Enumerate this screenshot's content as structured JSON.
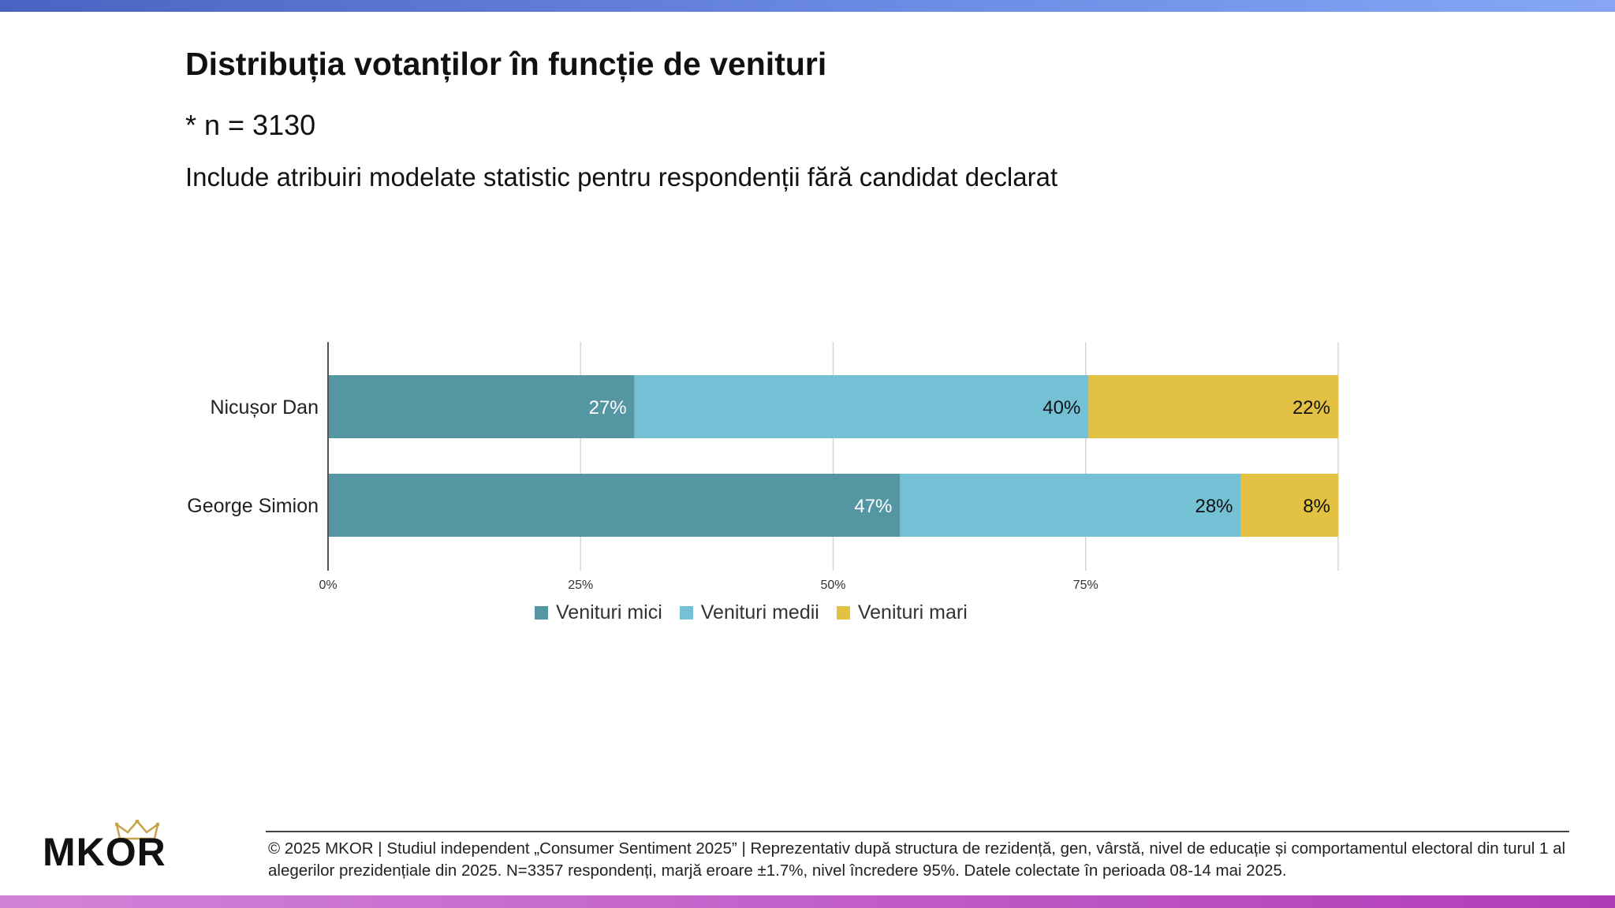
{
  "title": "Distribuția votanților în funcție de venituri",
  "sample_note": "* n = 3130",
  "subtitle": "Include atribuiri modelate statistic pentru respondenții fără candidat declarat",
  "colors": {
    "low": "#5596a3",
    "mid": "#74c0d5",
    "high": "#e3c143",
    "top_bar": "#5f7ad6",
    "bottom_bar": "#c05cc8"
  },
  "chart_data": {
    "type": "bar",
    "orientation": "horizontal",
    "stacked": true,
    "categories": [
      "Nicușor Dan",
      "George Simion"
    ],
    "series": [
      {
        "name": "Venituri mici",
        "values": [
          27,
          47
        ],
        "labels": [
          "27%",
          "47%"
        ]
      },
      {
        "name": "Venituri medii",
        "values": [
          40,
          28
        ],
        "labels": [
          "40%",
          "28%"
        ]
      },
      {
        "name": "Venituri mari",
        "values": [
          22,
          8
        ],
        "labels": [
          "22%",
          "8%"
        ]
      }
    ],
    "xticks": [
      "0%",
      "25%",
      "50%",
      "75%"
    ],
    "title": "",
    "xlabel": "",
    "ylabel": "",
    "legend_position": "bottom",
    "grid": true
  },
  "footer": {
    "text": "© 2025 MKOR | Studiul independent „Consumer Sentiment 2025” | Reprezentativ după structura de rezidență, gen, vârstă, nivel de educație și comportamentul electoral din turul 1 al alegerilor prezidențiale din 2025. N=3357 respondenți, marjă eroare ±1.7%, nivel încredere 95%. Datele colectate în perioada 08-14 mai 2025."
  },
  "logo": {
    "text": "MKOR",
    "icon": "crown-icon"
  }
}
